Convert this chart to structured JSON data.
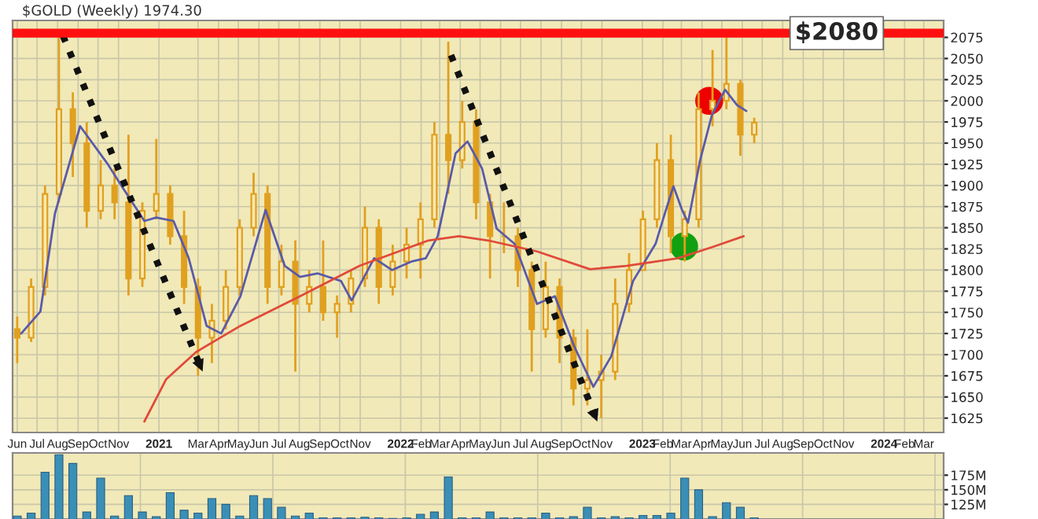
{
  "chart_data": [
    {
      "type": "candlestick",
      "title": "$GOLD (Weekly) 1974.30",
      "x": [
        "2020-06-01",
        "2020-06-22",
        "2020-07-13",
        "2020-08-03",
        "2020-08-24",
        "2020-09-14",
        "2020-10-05",
        "2020-10-26",
        "2020-11-16",
        "2020-12-07",
        "2020-12-28",
        "2021-01-18",
        "2021-02-08",
        "2021-03-01",
        "2021-03-22",
        "2021-04-12",
        "2021-05-03",
        "2021-05-24",
        "2021-06-14",
        "2021-07-05",
        "2021-07-26",
        "2021-08-16",
        "2021-09-06",
        "2021-09-27",
        "2021-10-18",
        "2021-11-08",
        "2021-11-29",
        "2021-12-20",
        "2022-01-10",
        "2022-01-31",
        "2022-02-21",
        "2022-03-14",
        "2022-04-04",
        "2022-04-25",
        "2022-05-16",
        "2022-06-06",
        "2022-06-27",
        "2022-07-18",
        "2022-08-08",
        "2022-08-29",
        "2022-09-19",
        "2022-10-10",
        "2022-10-31",
        "2022-11-21",
        "2022-12-12",
        "2023-01-02",
        "2023-01-23",
        "2023-02-13",
        "2023-03-06",
        "2023-03-27",
        "2023-04-17",
        "2023-05-08",
        "2023-05-29",
        "2023-06-19"
      ],
      "ohlc": [
        [
          1730,
          1745,
          1690,
          1720
        ],
        [
          1720,
          1790,
          1715,
          1780
        ],
        [
          1780,
          1900,
          1770,
          1890
        ],
        [
          1890,
          2075,
          1880,
          1990
        ],
        [
          1990,
          2010,
          1910,
          1950
        ],
        [
          1950,
          1975,
          1850,
          1870
        ],
        [
          1870,
          1930,
          1860,
          1900
        ],
        [
          1900,
          1920,
          1860,
          1880
        ],
        [
          1880,
          1960,
          1770,
          1790
        ],
        [
          1790,
          1880,
          1780,
          1870
        ],
        [
          1870,
          1955,
          1860,
          1890
        ],
        [
          1890,
          1900,
          1830,
          1840
        ],
        [
          1840,
          1870,
          1760,
          1780
        ],
        [
          1780,
          1790,
          1675,
          1720
        ],
        [
          1720,
          1760,
          1690,
          1740
        ],
        [
          1740,
          1800,
          1730,
          1780
        ],
        [
          1780,
          1860,
          1770,
          1850
        ],
        [
          1850,
          1915,
          1840,
          1890
        ],
        [
          1890,
          1900,
          1760,
          1780
        ],
        [
          1780,
          1830,
          1770,
          1810
        ],
        [
          1810,
          1835,
          1680,
          1760
        ],
        [
          1760,
          1800,
          1750,
          1780
        ],
        [
          1780,
          1835,
          1740,
          1750
        ],
        [
          1750,
          1770,
          1720,
          1760
        ],
        [
          1760,
          1800,
          1750,
          1790
        ],
        [
          1790,
          1875,
          1780,
          1850
        ],
        [
          1850,
          1860,
          1760,
          1780
        ],
        [
          1780,
          1830,
          1770,
          1810
        ],
        [
          1810,
          1850,
          1790,
          1830
        ],
        [
          1830,
          1880,
          1790,
          1860
        ],
        [
          1860,
          1975,
          1850,
          1960
        ],
        [
          1960,
          2070,
          1890,
          1930
        ],
        [
          1930,
          2000,
          1920,
          1975
        ],
        [
          1975,
          1990,
          1860,
          1880
        ],
        [
          1880,
          1890,
          1790,
          1840
        ],
        [
          1840,
          1880,
          1820,
          1840
        ],
        [
          1840,
          1850,
          1780,
          1800
        ],
        [
          1800,
          1810,
          1680,
          1730
        ],
        [
          1730,
          1810,
          1720,
          1780
        ],
        [
          1780,
          1790,
          1690,
          1720
        ],
        [
          1720,
          1730,
          1640,
          1660
        ],
        [
          1660,
          1730,
          1640,
          1670
        ],
        [
          1670,
          1700,
          1625,
          1680
        ],
        [
          1680,
          1790,
          1670,
          1760
        ],
        [
          1760,
          1820,
          1750,
          1800
        ],
        [
          1800,
          1870,
          1800,
          1860
        ],
        [
          1860,
          1950,
          1850,
          1930
        ],
        [
          1930,
          1960,
          1820,
          1840
        ],
        [
          1840,
          1870,
          1810,
          1860
        ],
        [
          1860,
          2010,
          1850,
          1990
        ],
        [
          1990,
          2060,
          1970,
          2000
        ],
        [
          2000,
          2080,
          1990,
          2020
        ],
        [
          2020,
          2025,
          1935,
          1960
        ],
        [
          1960,
          1980,
          1950,
          1974.3
        ]
      ],
      "color": "#e0a020",
      "series": [
        {
          "type": "line",
          "color": "#5a5aa8",
          "x": [
            "2020-06-07",
            "2020-07-06",
            "2020-07-28",
            "2020-09-04",
            "2020-10-15",
            "2020-11-06",
            "2020-12-10",
            "2020-12-28",
            "2021-01-23",
            "2021-02-15",
            "2021-03-14",
            "2021-04-05",
            "2021-05-04",
            "2021-06-11",
            "2021-07-10",
            "2021-08-02",
            "2021-08-29",
            "2021-10-03",
            "2021-10-19",
            "2021-11-22",
            "2021-12-19",
            "2022-01-17",
            "2022-02-08",
            "2022-02-26",
            "2022-03-25",
            "2022-04-12",
            "2022-05-04",
            "2022-05-26",
            "2022-06-22",
            "2022-07-26",
            "2022-08-22",
            "2022-09-20",
            "2022-10-19",
            "2022-11-15",
            "2022-12-18",
            "2023-01-21",
            "2023-02-04",
            "2023-02-17",
            "2023-03-02",
            "2023-03-11",
            "2023-03-29",
            "2023-04-16",
            "2023-05-06",
            "2023-05-24",
            "2023-06-07"
          ],
          "values": [
            1725,
            1751,
            1867,
            1970,
            1926,
            1899,
            1858,
            1862,
            1858,
            1814,
            1734,
            1725,
            1769,
            1871,
            1805,
            1792,
            1796,
            1787,
            1764,
            1814,
            1800,
            1810,
            1814,
            1840,
            1938,
            1952,
            1920,
            1849,
            1831,
            1760,
            1769,
            1710,
            1662,
            1698,
            1787,
            1831,
            1867,
            1899,
            1871,
            1856,
            1929,
            1983,
            2013,
            1995,
            1988
          ]
        },
        {
          "type": "line",
          "color": "#e04a3a",
          "x": [
            "2020-12-10",
            "2021-01-12",
            "2021-02-26",
            "2021-05-04",
            "2021-08-02",
            "2021-10-31",
            "2021-12-29",
            "2022-02-12",
            "2022-03-30",
            "2022-05-13",
            "2022-07-26",
            "2022-10-14",
            "2022-12-08",
            "2023-02-24",
            "2023-04-20",
            "2023-06-03"
          ],
          "values": [
            1621,
            1671,
            1703,
            1734,
            1769,
            1805,
            1822,
            1835,
            1840,
            1835,
            1822,
            1801,
            1805,
            1814,
            1828,
            1840
          ]
        },
        {
          "type": "line",
          "color": "#111111",
          "line_style": "dotted",
          "x": [
            "2020-08-09",
            "2021-03-08"
          ],
          "values": [
            2077,
            1680
          ]
        },
        {
          "type": "line",
          "color": "#111111",
          "line_style": "dotted",
          "x": [
            "2022-03-18",
            "2022-10-25"
          ],
          "values": [
            2054,
            1621
          ]
        },
        {
          "type": "scatter",
          "color": "#ee0000",
          "marker": "circle",
          "x": [
            "2023-04-12"
          ],
          "values": [
            2000
          ]
        },
        {
          "type": "scatter",
          "color": "#11a011",
          "marker": "circle",
          "x": [
            "2023-03-05"
          ],
          "values": [
            1828
          ]
        }
      ],
      "ref_lines": [
        {
          "axis": "y",
          "value": 2080,
          "label": "$2080",
          "color": "#ff1010"
        }
      ],
      "xlim": [
        "2020-05-25",
        "2024-03-31"
      ],
      "xticks": [
        {
          "value": "2020-06-01",
          "label": "Jun"
        },
        {
          "value": "2020-07-01",
          "label": "Jul"
        },
        {
          "value": "2020-08-01",
          "label": "Aug"
        },
        {
          "value": "2020-09-01",
          "label": "Sep"
        },
        {
          "value": "2020-10-01",
          "label": "Oct"
        },
        {
          "value": "2020-11-01",
          "label": "Nov"
        },
        {
          "value": "2021-01-01",
          "label": "2021"
        },
        {
          "value": "2021-03-01",
          "label": "Mar"
        },
        {
          "value": "2021-04-01",
          "label": "Apr"
        },
        {
          "value": "2021-05-01",
          "label": "May"
        },
        {
          "value": "2021-06-01",
          "label": "Jun"
        },
        {
          "value": "2021-07-01",
          "label": "Jul"
        },
        {
          "value": "2021-08-01",
          "label": "Aug"
        },
        {
          "value": "2021-09-01",
          "label": "Sep"
        },
        {
          "value": "2021-10-01",
          "label": "Oct"
        },
        {
          "value": "2021-11-01",
          "label": "Nov"
        },
        {
          "value": "2022-01-01",
          "label": "2022"
        },
        {
          "value": "2022-02-01",
          "label": "Feb"
        },
        {
          "value": "2022-03-01",
          "label": "Mar"
        },
        {
          "value": "2022-04-01",
          "label": "Apr"
        },
        {
          "value": "2022-05-01",
          "label": "May"
        },
        {
          "value": "2022-06-01",
          "label": "Jun"
        },
        {
          "value": "2022-07-01",
          "label": "Jul"
        },
        {
          "value": "2022-08-01",
          "label": "Aug"
        },
        {
          "value": "2022-09-01",
          "label": "Sep"
        },
        {
          "value": "2022-10-01",
          "label": "Oct"
        },
        {
          "value": "2022-11-01",
          "label": "Nov"
        },
        {
          "value": "2023-01-01",
          "label": "2023"
        },
        {
          "value": "2023-02-01",
          "label": "Feb"
        },
        {
          "value": "2023-03-01",
          "label": "Mar"
        },
        {
          "value": "2023-04-01",
          "label": "Apr"
        },
        {
          "value": "2023-05-01",
          "label": "May"
        },
        {
          "value": "2023-06-01",
          "label": "Jun"
        },
        {
          "value": "2023-07-01",
          "label": "Jul"
        },
        {
          "value": "2023-08-01",
          "label": "Aug"
        },
        {
          "value": "2023-09-01",
          "label": "Sep"
        },
        {
          "value": "2023-10-01",
          "label": "Oct"
        },
        {
          "value": "2023-11-01",
          "label": "Nov"
        },
        {
          "value": "2024-01-01",
          "label": "2024"
        },
        {
          "value": "2024-02-01",
          "label": "Feb"
        },
        {
          "value": "2024-03-01",
          "label": "Mar"
        }
      ],
      "ylim": [
        1608,
        2095
      ],
      "yticks": [
        1625,
        1650,
        1675,
        1700,
        1725,
        1750,
        1775,
        1800,
        1825,
        1850,
        1875,
        1900,
        1925,
        1950,
        1975,
        2000,
        2025,
        2050,
        2075
      ],
      "grid": true
    },
    {
      "type": "bar",
      "color": "#3a8fb7",
      "x": [
        "2020-06-01",
        "2020-06-22",
        "2020-07-13",
        "2020-08-03",
        "2020-08-24",
        "2020-09-14",
        "2020-10-05",
        "2020-10-26",
        "2020-11-16",
        "2020-12-07",
        "2020-12-28",
        "2021-01-18",
        "2021-02-08",
        "2021-03-01",
        "2021-03-22",
        "2021-04-12",
        "2021-05-03",
        "2021-05-24",
        "2021-06-14",
        "2021-07-05",
        "2021-07-26",
        "2021-08-16",
        "2021-09-06",
        "2021-09-27",
        "2021-10-18",
        "2021-11-08",
        "2021-11-29",
        "2021-12-20",
        "2022-01-10",
        "2022-01-31",
        "2022-02-21",
        "2022-03-14",
        "2022-04-04",
        "2022-04-25",
        "2022-05-16",
        "2022-06-06",
        "2022-06-27",
        "2022-07-18",
        "2022-08-08",
        "2022-08-29",
        "2022-09-19",
        "2022-10-10",
        "2022-10-31",
        "2022-11-21",
        "2022-12-12",
        "2023-01-02",
        "2023-01-23",
        "2023-02-13",
        "2023-03-06",
        "2023-03-27",
        "2023-04-17",
        "2023-05-08",
        "2023-05-29",
        "2023-06-19"
      ],
      "values": [
        105,
        110,
        180,
        210,
        195,
        112,
        170,
        105,
        140,
        112,
        104,
        145,
        115,
        110,
        135,
        125,
        105,
        140,
        135,
        120,
        105,
        110,
        102,
        102,
        102,
        103,
        102,
        101,
        102,
        108,
        112,
        172,
        102,
        102,
        112,
        102,
        102,
        102,
        110,
        102,
        104,
        120,
        102,
        104,
        102,
        106,
        106,
        110,
        170,
        150,
        104,
        128,
        120,
        102
      ],
      "xlim": [
        "2020-05-25",
        "2024-03-31"
      ],
      "ylim": [
        100,
        213
      ],
      "yticks": [
        {
          "value": 125,
          "label": "125M"
        },
        {
          "value": 150,
          "label": "150M"
        },
        {
          "value": 175,
          "label": "175M"
        }
      ],
      "tick_labels": "y",
      "grid": true
    }
  ]
}
